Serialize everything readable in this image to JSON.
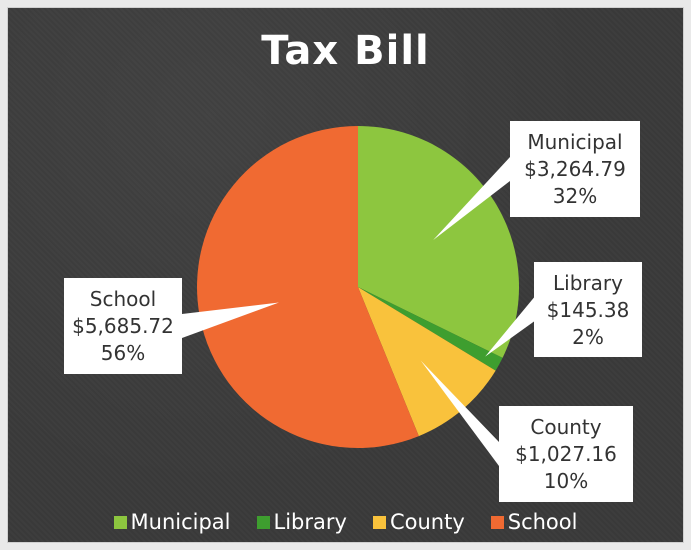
{
  "chart_data": {
    "type": "pie",
    "title": "Tax Bill",
    "slices": [
      {
        "name": "Municipal",
        "amount": "$3,264.79",
        "percent_label": "32%",
        "value": 3264.79,
        "color": "#8dc63f"
      },
      {
        "name": "Library",
        "amount": "$145.38",
        "percent_label": "2%",
        "value": 145.38,
        "color": "#3e9e2f"
      },
      {
        "name": "County",
        "amount": "$1,027.16",
        "percent_label": "10%",
        "value": 1027.16,
        "color": "#f9c23c"
      },
      {
        "name": "School",
        "amount": "$5,685.72",
        "percent_label": "56%",
        "value": 5685.72,
        "color": "#f06a32"
      }
    ],
    "legend_position": "bottom"
  }
}
